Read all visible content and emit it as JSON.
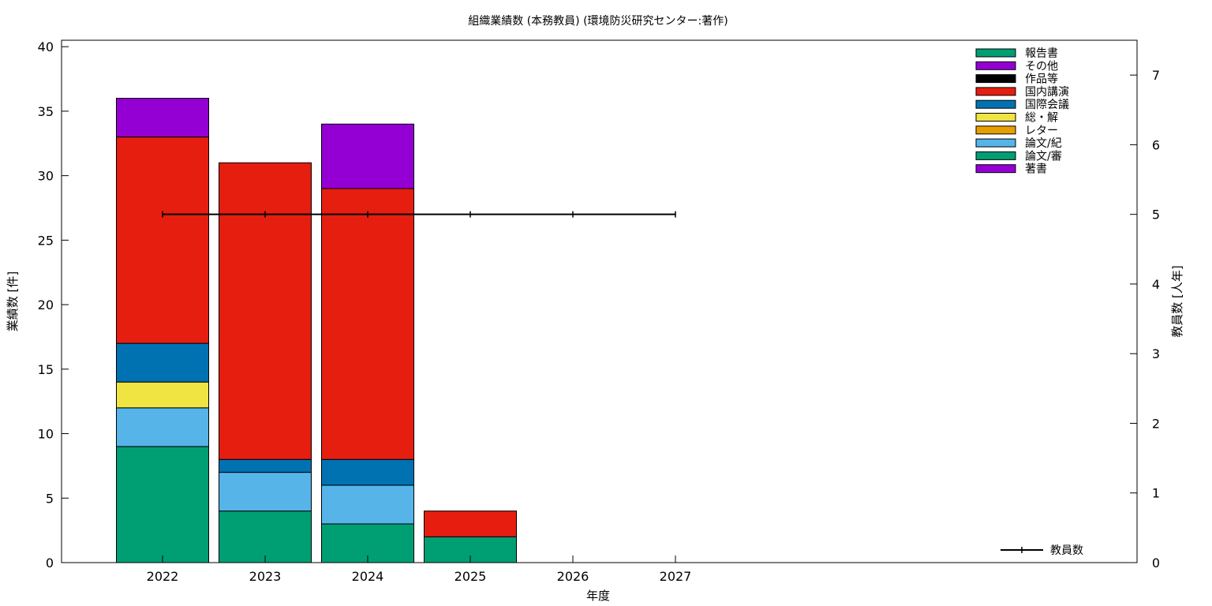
{
  "chart_data": {
    "type": "bar",
    "stacked": true,
    "title": "組織業績数 (本務教員) (環境防災研究センター:著作)",
    "xlabel": "年度",
    "ylabel": "業績数 [件]",
    "y2label": "教員数 [人年]",
    "ylim": [
      0,
      40.5
    ],
    "y2lim": [
      0,
      7.5
    ],
    "yticks": [
      0,
      5,
      10,
      15,
      20,
      25,
      30,
      35,
      40
    ],
    "y2ticks": [
      0,
      1,
      2,
      3,
      4,
      5,
      6,
      7
    ],
    "categories": [
      "2022",
      "2023",
      "2024",
      "2025",
      "2026",
      "2027"
    ],
    "grid": false,
    "legend_position": "top-right",
    "series": [
      {
        "name": "著書",
        "color": "#9400d3",
        "values": [
          0,
          0,
          0,
          0,
          0,
          0
        ]
      },
      {
        "name": "論文/審",
        "color": "#009e73",
        "values": [
          9,
          4,
          3,
          2,
          0,
          0
        ]
      },
      {
        "name": "論文/紀",
        "color": "#56b4e9",
        "values": [
          3,
          3,
          3,
          0,
          0,
          0
        ]
      },
      {
        "name": "レター",
        "color": "#e69f00",
        "values": [
          0,
          0,
          0,
          0,
          0,
          0
        ]
      },
      {
        "name": "総・解",
        "color": "#f0e442",
        "values": [
          2,
          0,
          0,
          0,
          0,
          0
        ]
      },
      {
        "name": "国際会議",
        "color": "#0072b2",
        "values": [
          3,
          1,
          2,
          0,
          0,
          0
        ]
      },
      {
        "name": "国内講演",
        "color": "#e51e10",
        "values": [
          16,
          23,
          21,
          2,
          0,
          0
        ]
      },
      {
        "name": "作品等",
        "color": "#000000",
        "values": [
          0,
          0,
          0,
          0,
          0,
          0
        ]
      },
      {
        "name": "その他",
        "color": "#9400d3",
        "values": [
          3,
          0,
          5,
          0,
          0,
          0
        ]
      },
      {
        "name": "報告書",
        "color": "#009e73",
        "values": [
          0,
          0,
          0,
          0,
          0,
          0
        ]
      }
    ],
    "line_series": {
      "name": "教員数",
      "axis": "y2",
      "color": "#000000",
      "values": [
        5,
        5,
        5,
        5,
        5,
        5
      ]
    }
  }
}
